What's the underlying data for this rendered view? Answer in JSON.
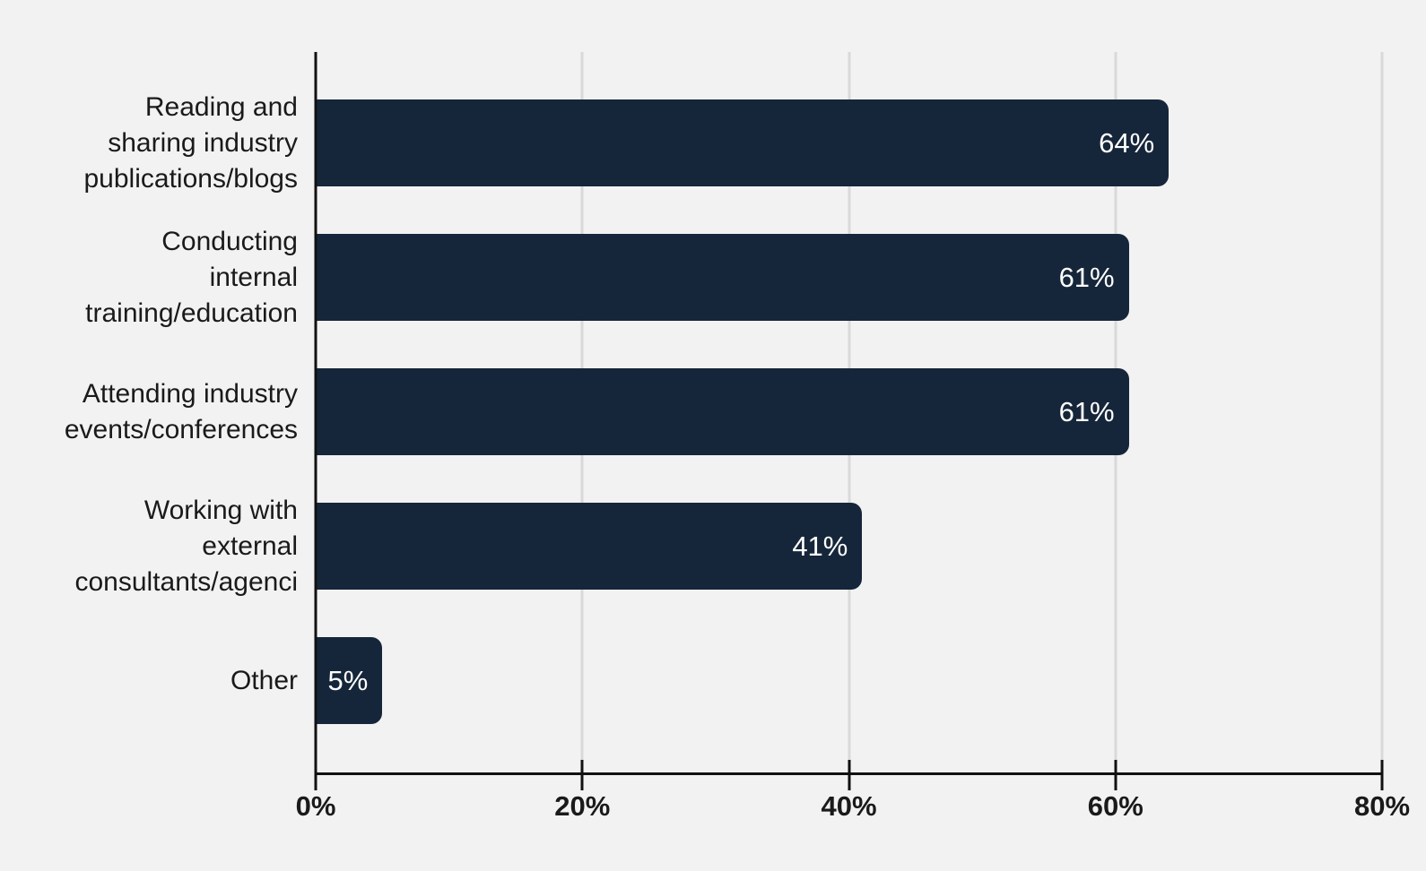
{
  "chart_data": {
    "type": "bar",
    "orientation": "horizontal",
    "title": "",
    "xlabel": "",
    "ylabel": "",
    "xlim": [
      0,
      80
    ],
    "x_ticks": [
      "0%",
      "20%",
      "40%",
      "60%",
      "80%"
    ],
    "grid": "vertical",
    "legend": "none",
    "categories": [
      "Reading and sharing industry publications/blogs",
      "Conducting internal training/education",
      "Attending industry events/conferences",
      "Working with external consultants/agenci",
      "Other"
    ],
    "rows": [
      {
        "label": "Reading and\nsharing industry\npublications/blogs",
        "value": 64,
        "value_label": "64%"
      },
      {
        "label": "Conducting\ninternal\ntraining/education",
        "value": 61,
        "value_label": "61%"
      },
      {
        "label": "Attending industry\nevents/conferences",
        "value": 61,
        "value_label": "61%"
      },
      {
        "label": "Working with\nexternal\nconsultants/agenci",
        "value": 41,
        "value_label": "41%"
      },
      {
        "label": "Other",
        "value": 5,
        "value_label": "5%"
      }
    ],
    "colors": {
      "background": "#f2f2f2",
      "bar": "#16263a",
      "gridline": "#d9d9d9",
      "axis": "#111111",
      "text": "#1a1a1a",
      "value_label": "#ffffff"
    }
  }
}
